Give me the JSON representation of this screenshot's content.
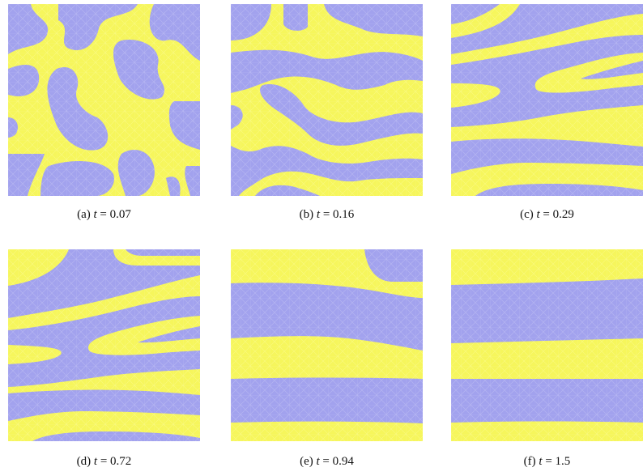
{
  "panels": [
    {
      "label": "(a)",
      "variable": "t",
      "rest": "= 0.07"
    },
    {
      "label": "(b)",
      "variable": "t",
      "rest": "= 0.16"
    },
    {
      "label": "(c)",
      "variable": "t",
      "rest": "= 0.29"
    },
    {
      "label": "(d)",
      "variable": "t",
      "rest": "= 0.72"
    },
    {
      "label": "(e)",
      "variable": "t",
      "rest": "= 0.94"
    },
    {
      "label": "(f)",
      "variable": "t",
      "rest": "= 1.5"
    }
  ]
}
